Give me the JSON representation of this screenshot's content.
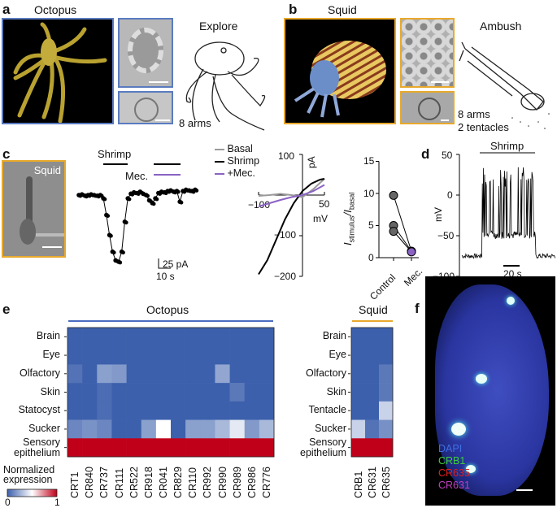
{
  "panel_a": {
    "label": "a",
    "title": "Octopus",
    "behavior": "Explore",
    "arms": "8 arms"
  },
  "panel_b": {
    "label": "b",
    "title": "Squid",
    "behavior": "Ambush",
    "arms": "8 arms",
    "tentacles": "2 tentacles"
  },
  "panel_c": {
    "label": "c",
    "photo_label": "Squid",
    "trace": {
      "shrimp_label": "Shrimp",
      "mec_label": "Mec.",
      "scale_current": "25 pA",
      "scale_time": "10 s"
    },
    "iv": {
      "legend": [
        "Basal",
        "Shrimp",
        "+Mec."
      ],
      "y_unit": "pA",
      "x_unit": "mV",
      "y_ticks": [
        "100",
        "−100",
        "−200"
      ],
      "x_ticks": [
        "−100",
        "50"
      ]
    },
    "ratio": {
      "y_label_main": "I",
      "y_label_sub1": "stimulus",
      "y_label_sep": "/I",
      "y_label_sub2": "basal",
      "y_ticks": [
        "15",
        "10",
        "5",
        "0"
      ],
      "x_ticks": [
        "Control",
        "Mec."
      ]
    }
  },
  "panel_d": {
    "label": "d",
    "stimulus": "Shrimp",
    "y_label": "mV",
    "y_ticks": [
      "50",
      "0",
      "−50",
      "−100"
    ],
    "scale_time": "20 s"
  },
  "panel_e": {
    "label": "e",
    "legend_title_1": "Normalized",
    "legend_title_2": "expression",
    "legend_min": "0",
    "legend_max": "1"
  },
  "panel_f": {
    "label": "f",
    "channels": [
      "DAPI",
      "CRB1",
      "CR635",
      "CR631"
    ],
    "channel_colors": [
      "#3f6fe0",
      "#3ccc3c",
      "#e02020",
      "#c040c0"
    ]
  },
  "colors": {
    "octopus": "#4a6cc0",
    "squid": "#e8a92c",
    "mec": "#8a63c4",
    "basal": "#9a9a9a",
    "heat_low": "#3c60ac",
    "heat_mid": "#ffffff",
    "heat_high": "#c00018"
  },
  "chart_data": [
    {
      "type": "heatmap",
      "title": "Octopus",
      "rows": [
        "Brain",
        "Eye",
        "Olfactory",
        "Skin",
        "Statocyst",
        "Sucker",
        "Sensory epithelium"
      ],
      "columns": [
        "CRT1",
        "CR840",
        "CR737",
        "CR111",
        "CR522",
        "CR918",
        "CR041",
        "CR829",
        "CR110",
        "CR992",
        "CR990",
        "CR989",
        "CR986",
        "CR776"
      ],
      "values": [
        [
          0,
          0,
          0,
          0,
          0,
          0,
          0,
          0,
          0,
          0,
          0,
          0,
          0,
          0
        ],
        [
          0,
          0,
          0,
          0,
          0,
          0,
          0,
          0,
          0,
          0,
          0,
          0,
          0,
          0
        ],
        [
          0.06,
          0,
          0.2,
          0.18,
          0,
          0,
          0,
          0,
          0,
          0,
          0.22,
          0,
          0,
          0
        ],
        [
          0,
          0,
          0.04,
          0,
          0,
          0,
          0,
          0,
          0,
          0,
          0,
          0.08,
          0,
          0
        ],
        [
          0,
          0,
          0.04,
          0,
          0,
          0,
          0,
          0,
          0,
          0,
          0,
          0,
          0,
          0
        ],
        [
          0.12,
          0.16,
          0.12,
          0,
          0,
          0.2,
          0.5,
          0,
          0.2,
          0.2,
          0.28,
          0.43,
          0.18,
          0.28
        ],
        [
          1,
          1,
          1,
          1,
          1,
          1,
          1,
          1,
          1,
          1,
          1,
          1,
          1,
          1
        ]
      ],
      "range": [
        0,
        1
      ]
    },
    {
      "type": "heatmap",
      "title": "Squid",
      "rows": [
        "Brain",
        "Eye",
        "Olfactory",
        "Skin",
        "Tentacle",
        "Sucker",
        "Sensory epithelium"
      ],
      "columns": [
        "CRB1",
        "CR631",
        "CR635"
      ],
      "values": [
        [
          0,
          0,
          0
        ],
        [
          0,
          0,
          0
        ],
        [
          0,
          0,
          0.08
        ],
        [
          0,
          0,
          0.08
        ],
        [
          0,
          0,
          0.36
        ],
        [
          0.36,
          0.06,
          0.15
        ],
        [
          1,
          1,
          1
        ]
      ],
      "range": [
        0,
        1
      ]
    },
    {
      "type": "line",
      "title": "I–V curves",
      "xlabel": "mV",
      "ylabel": "pA",
      "xlim": [
        -100,
        50
      ],
      "ylim": [
        -200,
        100
      ],
      "series": [
        {
          "name": "Basal",
          "x": [
            -100,
            -75,
            -50,
            -25,
            0,
            25,
            50
          ],
          "y": [
            -2,
            0,
            3,
            0,
            -5,
            15,
            40
          ]
        },
        {
          "name": "Shrimp",
          "x": [
            -100,
            -80,
            -60,
            -40,
            -20,
            0,
            20,
            40,
            50
          ],
          "y": [
            -195,
            -160,
            -110,
            -60,
            -20,
            10,
            28,
            38,
            40
          ]
        },
        {
          "name": "+Mec.",
          "x": [
            -100,
            -75,
            -50,
            -25,
            0,
            25,
            50
          ],
          "y": [
            -28,
            -20,
            -12,
            -5,
            0,
            10,
            25
          ]
        }
      ]
    },
    {
      "type": "scatter",
      "title": "Istimulus/Ibasal",
      "categories": [
        "Control",
        "Mec."
      ],
      "ylim": [
        0,
        15
      ],
      "series": [
        {
          "name": "cell1",
          "values": [
            9.7,
            1.0
          ]
        },
        {
          "name": "cell2",
          "values": [
            5.0,
            1.0
          ]
        },
        {
          "name": "cell3",
          "values": [
            4.1,
            0.9
          ]
        }
      ]
    },
    {
      "type": "line",
      "title": "Squid current trace",
      "xlabel": "s",
      "ylabel": "pA",
      "values": [
        0,
        1,
        -1,
        0,
        1,
        0,
        -1,
        0,
        -5,
        -30,
        -60,
        -85,
        -98,
        -100,
        -85,
        -40,
        -5,
        2,
        4,
        3,
        5,
        2,
        0,
        -8,
        -12,
        -5,
        3,
        5,
        4,
        6,
        7,
        5,
        6,
        -10,
        6,
        8,
        7,
        6,
        8
      ]
    },
    {
      "type": "line",
      "title": "Membrane potential",
      "xlabel": "s",
      "ylabel": "mV",
      "ylim": [
        -100,
        50
      ],
      "baseline": -75,
      "depolarized": -50,
      "spike_peak": 35
    }
  ]
}
